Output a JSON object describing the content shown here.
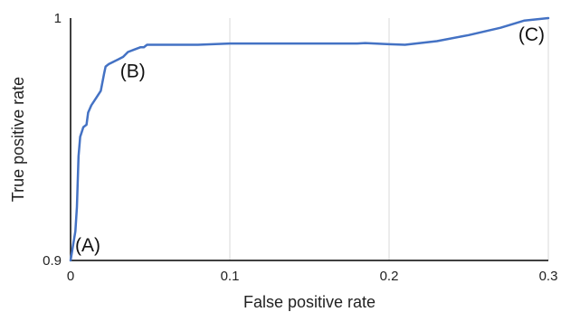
{
  "chart_data": {
    "type": "line",
    "title": "",
    "xlabel": "False positive rate",
    "ylabel": "True positive rate",
    "xlim": [
      0,
      0.3
    ],
    "ylim": [
      0.9,
      1
    ],
    "x_ticks": [
      {
        "value": 0,
        "label": "0"
      },
      {
        "value": 0.1,
        "label": "0.1"
      },
      {
        "value": 0.2,
        "label": "0.2"
      },
      {
        "value": 0.3,
        "label": "0.3"
      }
    ],
    "y_ticks": [
      {
        "value": 0.9,
        "label": "0.9"
      },
      {
        "value": 1,
        "label": "1"
      }
    ],
    "grid": {
      "vertical": true,
      "horizontal": false
    },
    "legend": "none",
    "colors": {
      "series": "#4472C4",
      "grid": "#d9d9d9",
      "axis": "#000000",
      "text": "#222222"
    },
    "series": [
      {
        "x": [
          0,
          0.002,
          0.003,
          0.004,
          0.005,
          0.006,
          0.008,
          0.01,
          0.011,
          0.013,
          0.016,
          0.019,
          0.021,
          0.022,
          0.024,
          0.027,
          0.03,
          0.033,
          0.036,
          0.04,
          0.044,
          0.046,
          0.048,
          0.05,
          0.06,
          0.08,
          0.1,
          0.15,
          0.18,
          0.185,
          0.2,
          0.21,
          0.23,
          0.25,
          0.27,
          0.285,
          0.3
        ],
        "y": [
          0.9,
          0.908,
          0.912,
          0.922,
          0.943,
          0.951,
          0.955,
          0.956,
          0.961,
          0.964,
          0.967,
          0.97,
          0.977,
          0.98,
          0.981,
          0.982,
          0.983,
          0.984,
          0.986,
          0.987,
          0.988,
          0.988,
          0.989,
          0.989,
          0.989,
          0.989,
          0.9895,
          0.9895,
          0.9895,
          0.9897,
          0.9892,
          0.989,
          0.9905,
          0.993,
          0.996,
          0.999,
          1.0
        ]
      }
    ],
    "annotations": [
      {
        "text": "(A)",
        "x": 0,
        "y": 0.9
      },
      {
        "text": "(B)",
        "x": 0.022,
        "y": 0.98
      },
      {
        "text": "(C)",
        "x": 0.3,
        "y": 1
      }
    ]
  }
}
